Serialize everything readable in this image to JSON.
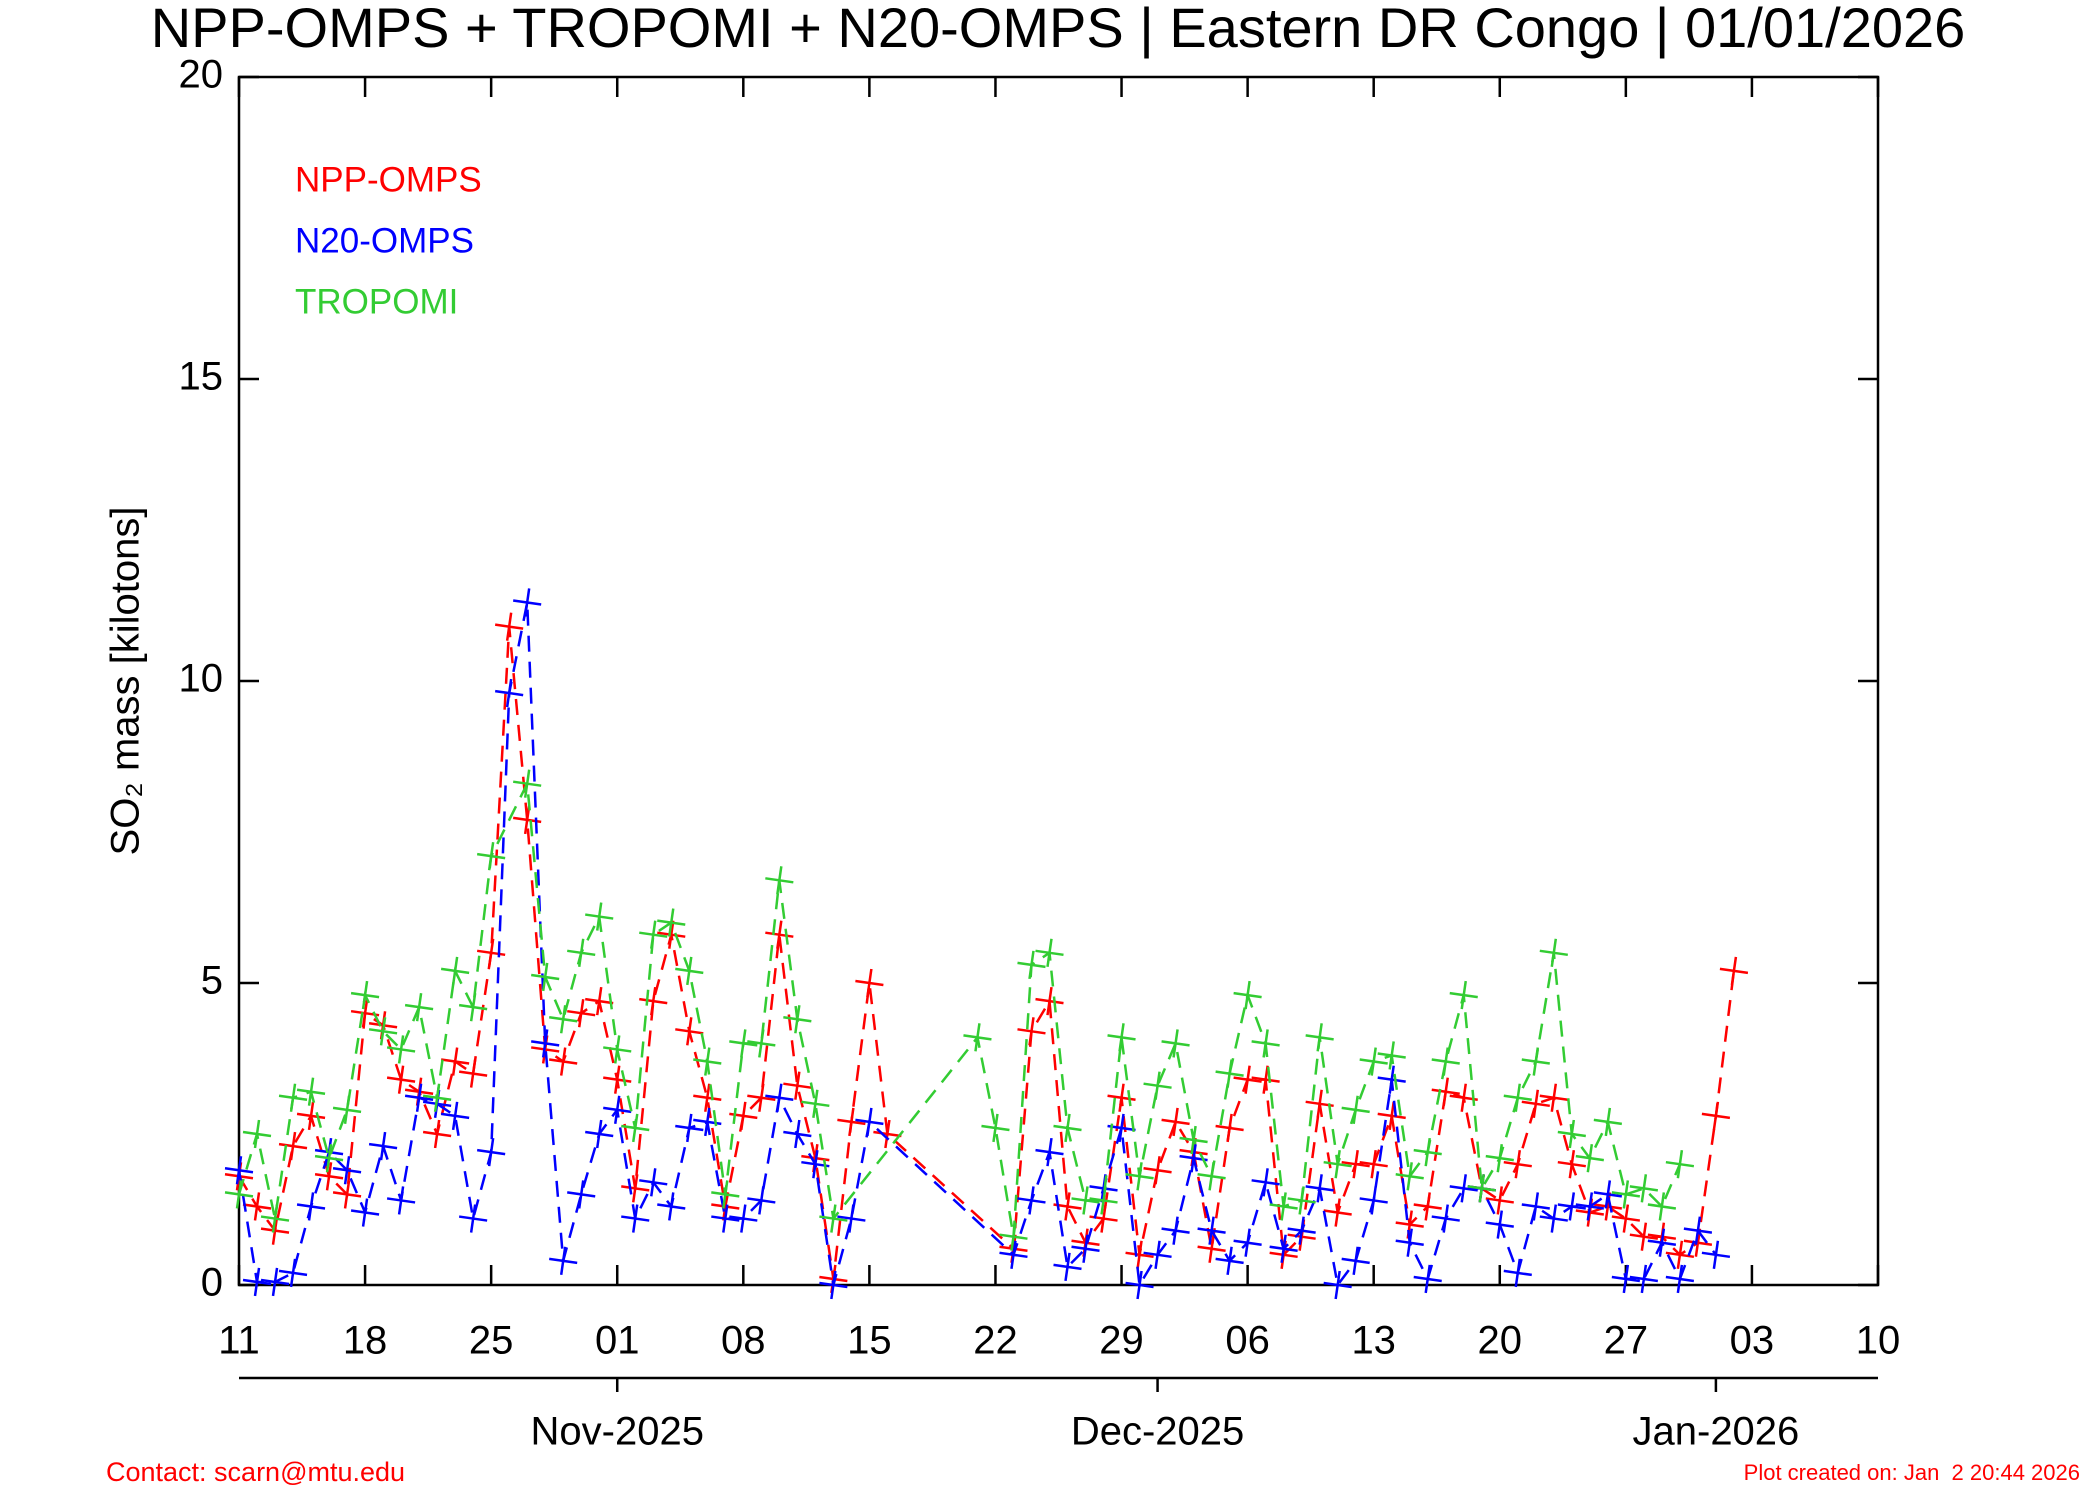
{
  "chart_data": {
    "type": "line",
    "title": "NPP-OMPS + TROPOMI + N20-OMPS | Eastern DR Congo | 01/01/2026",
    "ylabel": "SO₂ mass [kilotons]",
    "xlim": [
      "2025-10-11",
      "2026-01-10"
    ],
    "xticks": [
      {
        "value": "2025-10-11",
        "label": "11"
      },
      {
        "value": "2025-10-18",
        "label": "18"
      },
      {
        "value": "2025-10-25",
        "label": "25"
      },
      {
        "value": "2025-11-01",
        "label": "01"
      },
      {
        "value": "2025-11-08",
        "label": "08"
      },
      {
        "value": "2025-11-15",
        "label": "15"
      },
      {
        "value": "2025-11-22",
        "label": "22"
      },
      {
        "value": "2025-11-29",
        "label": "29"
      },
      {
        "value": "2025-12-06",
        "label": "06"
      },
      {
        "value": "2025-12-13",
        "label": "13"
      },
      {
        "value": "2025-12-20",
        "label": "20"
      },
      {
        "value": "2025-12-27",
        "label": "27"
      },
      {
        "value": "2026-01-03",
        "label": "03"
      },
      {
        "value": "2026-01-10",
        "label": "10"
      }
    ],
    "x2ticks": [
      {
        "value": "2025-11-01",
        "label": "Nov-2025"
      },
      {
        "value": "2025-12-01",
        "label": "Dec-2025"
      },
      {
        "value": "2026-01-01",
        "label": "Jan-2026"
      }
    ],
    "ylim": [
      0,
      20
    ],
    "yticks": [
      0,
      5,
      10,
      15,
      20
    ],
    "legend": "top-left",
    "series": [
      {
        "name": "NPP-OMPS",
        "color": "#ff0000",
        "x": [
          "2025-10-11",
          "2025-10-12",
          "2025-10-13",
          "2025-10-14",
          "2025-10-15",
          "2025-10-16",
          "2025-10-17",
          "2025-10-18",
          "2025-10-19",
          "2025-10-20",
          "2025-10-21",
          "2025-10-22",
          "2025-10-23",
          "2025-10-24",
          "2025-10-25",
          "2025-10-26",
          "2025-10-27",
          "2025-10-28",
          "2025-10-29",
          "2025-10-30",
          "2025-10-31",
          "2025-11-01",
          "2025-11-02",
          "2025-11-03",
          "2025-11-04",
          "2025-11-05",
          "2025-11-06",
          "2025-11-07",
          "2025-11-08",
          "2025-11-09",
          "2025-11-10",
          "2025-11-11",
          "2025-11-12",
          "2025-11-13",
          "2025-11-14",
          "2025-11-15",
          "2025-11-16",
          "2025-11-23",
          "2025-11-24",
          "2025-11-25",
          "2025-11-26",
          "2025-11-27",
          "2025-11-28",
          "2025-11-29",
          "2025-11-30",
          "2025-12-01",
          "2025-12-02",
          "2025-12-03",
          "2025-12-04",
          "2025-12-05",
          "2025-12-06",
          "2025-12-07",
          "2025-12-08",
          "2025-12-09",
          "2025-12-10",
          "2025-12-11",
          "2025-12-12",
          "2025-12-13",
          "2025-12-14",
          "2025-12-15",
          "2025-12-16",
          "2025-12-17",
          "2025-12-18",
          "2025-12-19",
          "2025-12-20",
          "2025-12-21",
          "2025-12-22",
          "2025-12-23",
          "2025-12-24",
          "2025-12-25",
          "2025-12-26",
          "2025-12-27",
          "2025-12-28",
          "2025-12-29",
          "2025-12-30",
          "2025-12-31",
          "2026-01-01",
          "2026-01-02"
        ],
        "values": [
          1.8,
          1.3,
          0.9,
          2.3,
          2.8,
          1.8,
          1.5,
          4.5,
          4.3,
          3.4,
          3.2,
          2.5,
          3.7,
          3.5,
          5.5,
          10.9,
          7.7,
          3.9,
          3.7,
          4.5,
          4.7,
          3.4,
          1.6,
          4.7,
          5.8,
          4.2,
          3.1,
          1.3,
          2.8,
          3.1,
          5.8,
          3.3,
          2.1,
          0.1,
          2.7,
          5.0,
          2.5,
          0.6,
          4.2,
          4.7,
          1.3,
          0.7,
          1.1,
          3.1,
          0.5,
          1.9,
          2.7,
          2.2,
          0.6,
          2.6,
          3.4,
          3.4,
          0.5,
          0.8,
          3.0,
          1.2,
          2.0,
          2.0,
          2.8,
          1.0,
          1.3,
          3.2,
          3.1,
          1.6,
          1.4,
          2.0,
          3.0,
          3.1,
          2.0,
          1.2,
          1.3,
          1.1,
          0.8,
          0.8,
          0.5,
          0.7,
          2.8,
          5.2
        ]
      },
      {
        "name": "N20-OMPS",
        "color": "#0000ff",
        "x": [
          "2025-10-11",
          "2025-10-12",
          "2025-10-13",
          "2025-10-14",
          "2025-10-15",
          "2025-10-16",
          "2025-10-17",
          "2025-10-18",
          "2025-10-19",
          "2025-10-20",
          "2025-10-21",
          "2025-10-22",
          "2025-10-23",
          "2025-10-24",
          "2025-10-25",
          "2025-10-26",
          "2025-10-27",
          "2025-10-28",
          "2025-10-29",
          "2025-10-30",
          "2025-10-31",
          "2025-11-01",
          "2025-11-02",
          "2025-11-03",
          "2025-11-04",
          "2025-11-05",
          "2025-11-06",
          "2025-11-07",
          "2025-11-08",
          "2025-11-09",
          "2025-11-10",
          "2025-11-11",
          "2025-11-12",
          "2025-11-13",
          "2025-11-14",
          "2025-11-15",
          "2025-11-23",
          "2025-11-24",
          "2025-11-25",
          "2025-11-26",
          "2025-11-27",
          "2025-11-28",
          "2025-11-29",
          "2025-11-30",
          "2025-12-01",
          "2025-12-02",
          "2025-12-03",
          "2025-12-04",
          "2025-12-05",
          "2025-12-06",
          "2025-12-07",
          "2025-12-08",
          "2025-12-09",
          "2025-12-10",
          "2025-12-11",
          "2025-12-12",
          "2025-12-13",
          "2025-12-14",
          "2025-12-15",
          "2025-12-16",
          "2025-12-17",
          "2025-12-18",
          "2025-12-19",
          "2025-12-20",
          "2025-12-21",
          "2025-12-22",
          "2025-12-23",
          "2025-12-24",
          "2025-12-25",
          "2025-12-26",
          "2025-12-27",
          "2025-12-28",
          "2025-12-29",
          "2025-12-30",
          "2025-12-31",
          "2026-01-01"
        ],
        "values": [
          1.9,
          0.05,
          0.05,
          0.2,
          1.3,
          2.2,
          1.9,
          1.2,
          2.3,
          1.4,
          3.1,
          3.0,
          2.8,
          1.1,
          2.2,
          9.8,
          11.3,
          4.0,
          0.4,
          1.5,
          2.5,
          2.9,
          1.1,
          1.7,
          1.3,
          2.6,
          2.7,
          1.1,
          1.1,
          1.4,
          3.1,
          2.5,
          2.0,
          0.0,
          1.1,
          2.7,
          0.5,
          1.4,
          2.2,
          0.3,
          0.6,
          1.6,
          2.6,
          0.0,
          0.5,
          0.9,
          2.1,
          0.9,
          0.4,
          0.7,
          1.7,
          0.6,
          0.9,
          1.6,
          0.0,
          0.4,
          1.4,
          3.4,
          0.7,
          0.1,
          1.1,
          1.6,
          1.6,
          1.0,
          0.2,
          1.3,
          1.1,
          1.3,
          1.3,
          1.5,
          0.1,
          0.1,
          0.7,
          0.1,
          0.9,
          0.5
        ]
      },
      {
        "name": "TROPOMI",
        "color": "#33cc33",
        "x": [
          "2025-10-11",
          "2025-10-12",
          "2025-10-13",
          "2025-10-14",
          "2025-10-15",
          "2025-10-16",
          "2025-10-17",
          "2025-10-18",
          "2025-10-19",
          "2025-10-20",
          "2025-10-21",
          "2025-10-22",
          "2025-10-23",
          "2025-10-24",
          "2025-10-25",
          "2025-10-27",
          "2025-10-28",
          "2025-10-29",
          "2025-10-30",
          "2025-10-31",
          "2025-11-01",
          "2025-11-02",
          "2025-11-03",
          "2025-11-04",
          "2025-11-05",
          "2025-11-06",
          "2025-11-07",
          "2025-11-08",
          "2025-11-09",
          "2025-11-10",
          "2025-11-11",
          "2025-11-12",
          "2025-11-13",
          "2025-11-21",
          "2025-11-22",
          "2025-11-23",
          "2025-11-24",
          "2025-11-25",
          "2025-11-26",
          "2025-11-27",
          "2025-11-28",
          "2025-11-29",
          "2025-11-30",
          "2025-12-01",
          "2025-12-02",
          "2025-12-03",
          "2025-12-04",
          "2025-12-05",
          "2025-12-06",
          "2025-12-07",
          "2025-12-08",
          "2025-12-09",
          "2025-12-10",
          "2025-12-11",
          "2025-12-12",
          "2025-12-13",
          "2025-12-14",
          "2025-12-15",
          "2025-12-16",
          "2025-12-17",
          "2025-12-18",
          "2025-12-19",
          "2025-12-20",
          "2025-12-21",
          "2025-12-22",
          "2025-12-23",
          "2025-12-24",
          "2025-12-25",
          "2025-12-26",
          "2025-12-27",
          "2025-12-28",
          "2025-12-29",
          "2025-12-30"
        ],
        "values": [
          1.5,
          2.5,
          1.1,
          3.1,
          3.2,
          2.1,
          2.9,
          4.8,
          4.2,
          3.9,
          4.6,
          3.1,
          5.2,
          4.6,
          7.1,
          8.3,
          5.1,
          4.4,
          5.5,
          6.1,
          3.9,
          2.6,
          5.8,
          6.0,
          5.2,
          3.7,
          1.5,
          4.0,
          4.0,
          6.7,
          4.4,
          3.0,
          1.1,
          4.1,
          2.6,
          0.8,
          5.3,
          5.5,
          2.6,
          1.4,
          1.4,
          4.1,
          1.8,
          3.3,
          4.0,
          2.4,
          1.8,
          3.5,
          4.8,
          4.0,
          1.3,
          1.4,
          4.1,
          2.0,
          2.9,
          3.7,
          3.8,
          1.8,
          2.2,
          3.7,
          4.8,
          1.6,
          2.1,
          3.1,
          3.7,
          5.5,
          2.5,
          2.1,
          2.7,
          1.5,
          1.6,
          1.3,
          2.0
        ]
      }
    ],
    "contact": "Contact: scarn@mtu.edu",
    "created": "Plot created on: Jan  2 20:44 2026"
  }
}
